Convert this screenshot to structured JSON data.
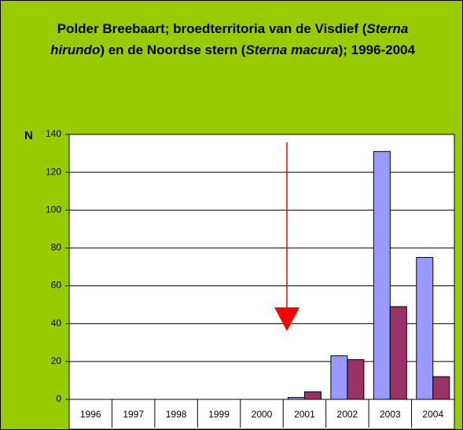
{
  "chart_data": {
    "type": "bar",
    "title": [
      "Polder Breebaart; broedterritoria van de Visdief (",
      "Sterna hirundo",
      ") en de Noordse stern (",
      "Sterna macura",
      "); 1996-2004"
    ],
    "y_label": "N",
    "categories": [
      "1996",
      "1997",
      "1998",
      "1999",
      "2000",
      "2001",
      "2002",
      "2003",
      "2004"
    ],
    "series": [
      {
        "color": "#9999ff",
        "values": [
          0,
          0,
          0,
          0,
          0,
          1,
          23,
          131,
          75
        ]
      },
      {
        "color": "#993366",
        "values": [
          0,
          0,
          0,
          0,
          0,
          4,
          21,
          49,
          12
        ]
      }
    ],
    "ylim": [
      0,
      140
    ],
    "yticks": [
      0,
      20,
      40,
      60,
      80,
      100,
      120,
      140
    ],
    "grid": true
  }
}
